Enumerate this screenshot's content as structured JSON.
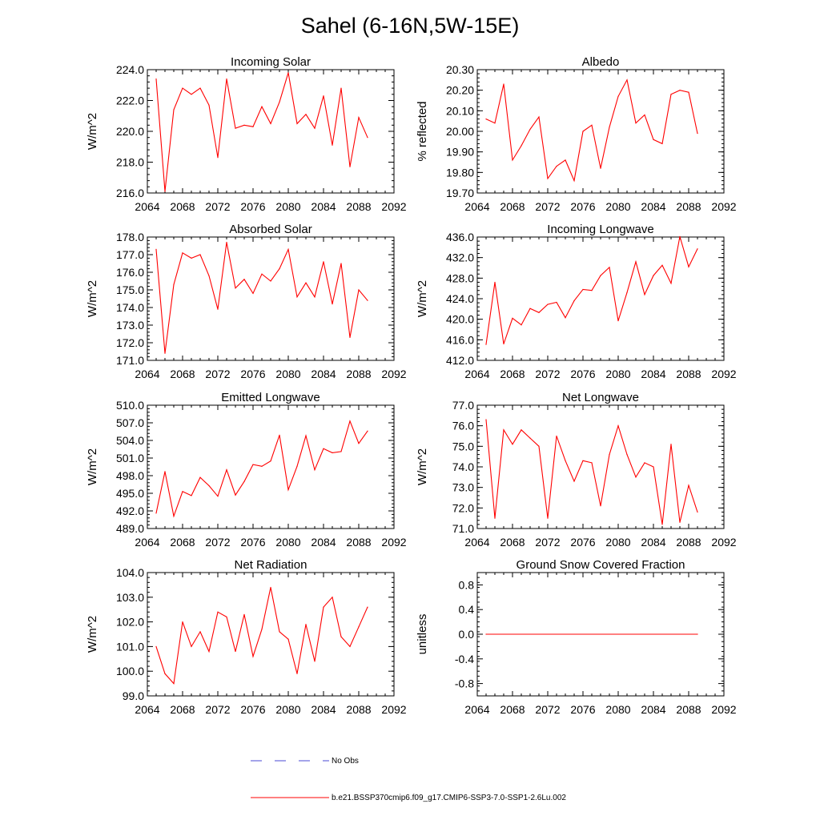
{
  "figure": {
    "title": "Sahel (6-16N,5W-15E)"
  },
  "legend": {
    "entries": [
      {
        "label": "No Obs",
        "color": "#4a4ad6",
        "dash": "dashed"
      },
      {
        "label": "b.e21.BSSP370cmip6.f09_g17.CMIP6-SSP3-7.0-SSP1-2.6Lu.002",
        "color": "#ff0000",
        "dash": "solid"
      }
    ]
  },
  "chart_data": [
    {
      "type": "line",
      "title": "Incoming Solar",
      "ylabel": "W/m^2",
      "xlim": [
        2064,
        2092
      ],
      "ylim": [
        216.0,
        224.0
      ],
      "xticks": [
        "2064",
        "2068",
        "2072",
        "2076",
        "2080",
        "2084",
        "2088",
        "2092"
      ],
      "yticks": [
        "216.0",
        "218.0",
        "220.0",
        "222.0",
        "224.0"
      ],
      "series": [
        {
          "color": "#ff0000",
          "x": [
            2065,
            2066,
            2067,
            2068,
            2069,
            2070,
            2071,
            2072,
            2073,
            2074,
            2075,
            2076,
            2077,
            2078,
            2079,
            2080,
            2081,
            2082,
            2083,
            2084,
            2085,
            2086,
            2087,
            2088,
            2089
          ],
          "y": [
            223.4,
            216.1,
            221.4,
            222.8,
            222.4,
            222.8,
            221.7,
            218.3,
            223.4,
            220.2,
            220.4,
            220.3,
            221.6,
            220.5,
            221.9,
            223.8,
            220.5,
            221.1,
            220.2,
            222.3,
            219.1,
            222.8,
            217.7,
            220.9,
            219.6
          ]
        }
      ]
    },
    {
      "type": "line",
      "title": "Albedo",
      "ylabel": "% reflected",
      "xlim": [
        2064,
        2092
      ],
      "ylim": [
        19.7,
        20.3
      ],
      "xticks": [
        "2064",
        "2068",
        "2072",
        "2076",
        "2080",
        "2084",
        "2088",
        "2092"
      ],
      "yticks": [
        "19.70",
        "19.80",
        "19.90",
        "20.00",
        "20.10",
        "20.20",
        "20.30"
      ],
      "series": [
        {
          "color": "#ff0000",
          "x": [
            2065,
            2066,
            2067,
            2068,
            2069,
            2070,
            2071,
            2072,
            2073,
            2074,
            2075,
            2076,
            2077,
            2078,
            2079,
            2080,
            2081,
            2082,
            2083,
            2084,
            2085,
            2086,
            2087,
            2088,
            2089
          ],
          "y": [
            20.06,
            20.04,
            20.23,
            19.86,
            19.93,
            20.01,
            20.07,
            19.77,
            19.83,
            19.86,
            19.76,
            20.0,
            20.03,
            19.82,
            20.02,
            20.17,
            20.25,
            20.04,
            20.08,
            19.96,
            19.94,
            20.18,
            20.2,
            20.19,
            19.99
          ]
        }
      ]
    },
    {
      "type": "line",
      "title": "Absorbed Solar",
      "ylabel": "W/m^2",
      "xlim": [
        2064,
        2092
      ],
      "ylim": [
        171.0,
        178.0
      ],
      "xticks": [
        "2064",
        "2068",
        "2072",
        "2076",
        "2080",
        "2084",
        "2088",
        "2092"
      ],
      "yticks": [
        "171.0",
        "172.0",
        "173.0",
        "174.0",
        "175.0",
        "176.0",
        "177.0",
        "178.0"
      ],
      "series": [
        {
          "color": "#ff0000",
          "x": [
            2065,
            2066,
            2067,
            2068,
            2069,
            2070,
            2071,
            2072,
            2073,
            2074,
            2075,
            2076,
            2077,
            2078,
            2079,
            2080,
            2081,
            2082,
            2083,
            2084,
            2085,
            2086,
            2087,
            2088,
            2089
          ],
          "y": [
            177.3,
            171.4,
            175.3,
            177.1,
            176.8,
            177.0,
            175.8,
            173.9,
            177.7,
            175.1,
            175.6,
            174.8,
            175.9,
            175.5,
            176.2,
            177.3,
            174.6,
            175.4,
            174.6,
            176.6,
            174.2,
            176.5,
            172.3,
            175.0,
            174.4
          ]
        }
      ]
    },
    {
      "type": "line",
      "title": "Incoming Longwave",
      "ylabel": "W/m^2",
      "xlim": [
        2064,
        2092
      ],
      "ylim": [
        412.0,
        436.0
      ],
      "xticks": [
        "2064",
        "2068",
        "2072",
        "2076",
        "2080",
        "2084",
        "2088",
        "2092"
      ],
      "yticks": [
        "412.0",
        "416.0",
        "420.0",
        "424.0",
        "428.0",
        "432.0",
        "436.0"
      ],
      "series": [
        {
          "color": "#ff0000",
          "x": [
            2065,
            2066,
            2067,
            2068,
            2069,
            2070,
            2071,
            2072,
            2073,
            2074,
            2075,
            2076,
            2077,
            2078,
            2079,
            2080,
            2081,
            2082,
            2083,
            2084,
            2085,
            2086,
            2087,
            2088,
            2089
          ],
          "y": [
            415.1,
            427.2,
            415.2,
            420.2,
            418.9,
            422.1,
            421.3,
            422.9,
            423.3,
            420.3,
            423.6,
            425.8,
            425.6,
            428.5,
            430.1,
            419.7,
            425.2,
            431.2,
            424.8,
            428.5,
            430.5,
            427.0,
            436.1,
            430.2,
            433.7
          ]
        }
      ]
    },
    {
      "type": "line",
      "title": "Emitted Longwave",
      "ylabel": "W/m^2",
      "xlim": [
        2064,
        2092
      ],
      "ylim": [
        489.0,
        510.0
      ],
      "xticks": [
        "2064",
        "2068",
        "2072",
        "2076",
        "2080",
        "2084",
        "2088",
        "2092"
      ],
      "yticks": [
        "489.0",
        "492.0",
        "495.0",
        "498.0",
        "501.0",
        "504.0",
        "507.0",
        "510.0"
      ],
      "series": [
        {
          "color": "#ff0000",
          "x": [
            2065,
            2066,
            2067,
            2068,
            2069,
            2070,
            2071,
            2072,
            2073,
            2074,
            2075,
            2076,
            2077,
            2078,
            2079,
            2080,
            2081,
            2082,
            2083,
            2084,
            2085,
            2086,
            2087,
            2088,
            2089
          ],
          "y": [
            491.6,
            498.7,
            491.1,
            495.3,
            494.6,
            497.7,
            496.3,
            494.5,
            499.0,
            494.7,
            497.0,
            499.9,
            499.6,
            500.5,
            504.9,
            495.6,
            499.6,
            504.8,
            499.0,
            502.6,
            501.9,
            502.1,
            507.3,
            503.5,
            505.6
          ]
        }
      ]
    },
    {
      "type": "line",
      "title": "Net Longwave",
      "ylabel": "W/m^2",
      "xlim": [
        2064,
        2092
      ],
      "ylim": [
        71.0,
        77.0
      ],
      "xticks": [
        "2064",
        "2068",
        "2072",
        "2076",
        "2080",
        "2084",
        "2088",
        "2092"
      ],
      "yticks": [
        "71.0",
        "72.0",
        "73.0",
        "74.0",
        "75.0",
        "76.0",
        "77.0"
      ],
      "series": [
        {
          "color": "#ff0000",
          "x": [
            2065,
            2066,
            2067,
            2068,
            2069,
            2070,
            2071,
            2072,
            2073,
            2074,
            2075,
            2076,
            2077,
            2078,
            2079,
            2080,
            2081,
            2082,
            2083,
            2084,
            2085,
            2086,
            2087,
            2088,
            2089
          ],
          "y": [
            76.3,
            71.5,
            75.8,
            75.1,
            75.8,
            75.4,
            75.0,
            71.5,
            75.5,
            74.3,
            73.3,
            74.3,
            74.2,
            72.1,
            74.6,
            76.0,
            74.6,
            73.5,
            74.2,
            74.0,
            71.2,
            75.1,
            71.3,
            73.1,
            71.8
          ]
        }
      ]
    },
    {
      "type": "line",
      "title": "Net Radiation",
      "ylabel": "W/m^2",
      "xlim": [
        2064,
        2092
      ],
      "ylim": [
        99.0,
        104.0
      ],
      "xticks": [
        "2064",
        "2068",
        "2072",
        "2076",
        "2080",
        "2084",
        "2088",
        "2092"
      ],
      "yticks": [
        "99.0",
        "100.0",
        "101.0",
        "102.0",
        "103.0",
        "104.0"
      ],
      "series": [
        {
          "color": "#ff0000",
          "x": [
            2065,
            2066,
            2067,
            2068,
            2069,
            2070,
            2071,
            2072,
            2073,
            2074,
            2075,
            2076,
            2077,
            2078,
            2079,
            2080,
            2081,
            2082,
            2083,
            2084,
            2085,
            2086,
            2087,
            2088,
            2089
          ],
          "y": [
            101.0,
            99.9,
            99.5,
            102.0,
            101.0,
            101.6,
            100.8,
            102.4,
            102.2,
            100.8,
            102.3,
            100.6,
            101.7,
            103.4,
            101.6,
            101.3,
            99.9,
            101.9,
            100.4,
            102.6,
            103.0,
            101.4,
            101.0,
            101.8,
            102.6
          ]
        }
      ]
    },
    {
      "type": "line",
      "title": "Ground Snow Covered Fraction",
      "ylabel": "unitless",
      "xlim": [
        2064,
        2092
      ],
      "ylim": [
        -1.0,
        1.0
      ],
      "xticks": [
        "2064",
        "2068",
        "2072",
        "2076",
        "2080",
        "2084",
        "2088",
        "2092"
      ],
      "yticks": [
        "-0.8",
        "-0.4",
        "0.0",
        "0.4",
        "0.8"
      ],
      "yticks_at": [
        -0.8,
        -0.4,
        0.0,
        0.4,
        0.8
      ],
      "series": [
        {
          "color": "#ff0000",
          "x": [
            2065,
            2089
          ],
          "y": [
            0.0,
            0.0
          ]
        }
      ]
    }
  ]
}
